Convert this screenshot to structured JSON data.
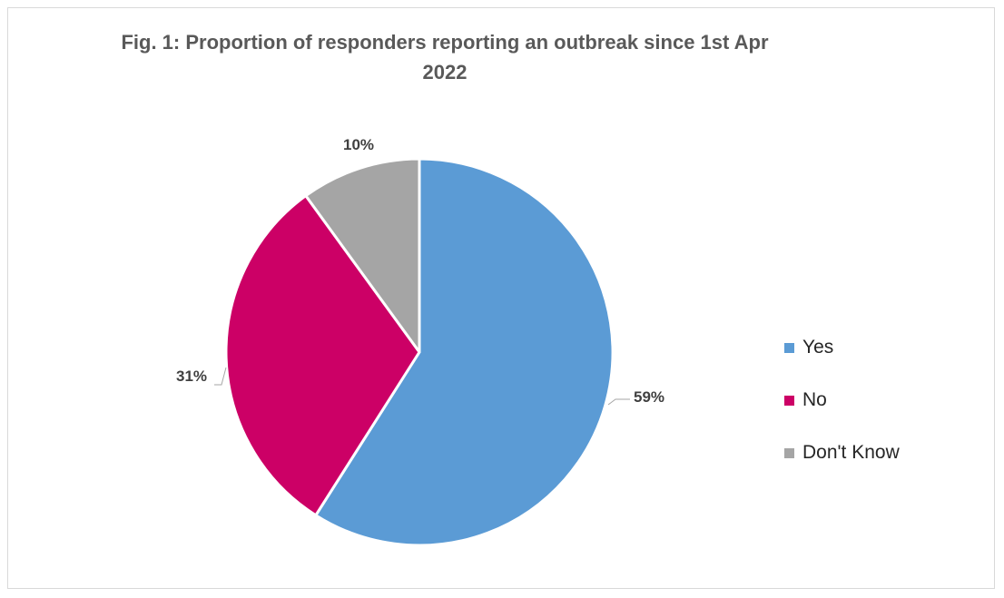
{
  "chart_data": {
    "type": "pie",
    "title": "Fig. 1: Proportion of responders reporting an outbreak since 1st Apr 2022",
    "categories": [
      "Yes",
      "No",
      "Don't Know"
    ],
    "values": [
      59,
      31,
      10
    ],
    "labels": [
      "59%",
      "31%",
      "10%"
    ],
    "colors": [
      "#5b9bd5",
      "#cc0066",
      "#a5a5a5"
    ],
    "legend_position": "right"
  }
}
